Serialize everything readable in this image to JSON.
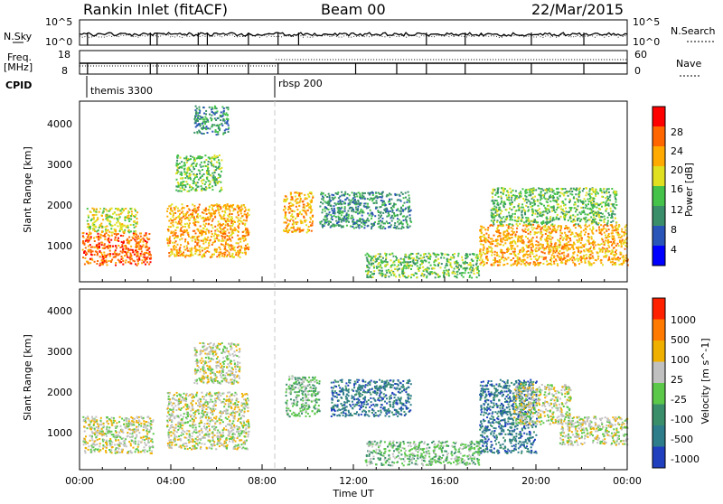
{
  "header": {
    "station": "Rankin Inlet (fitACF)",
    "beam": "Beam 00",
    "date": "22/Mar/2015"
  },
  "top_panels": {
    "nsky_label": "N.Sky",
    "nsky_ticks": [
      "10^5",
      "10^0"
    ],
    "nsearch_label": "N.Search",
    "nsearch_ticks": [
      "10^5",
      "10^0"
    ],
    "freq_label": "Freq.",
    "freq_unit": "[MHz]",
    "freq_ticks": [
      "18",
      "8"
    ],
    "nave_label": "Nave",
    "nave_ticks": [
      "60",
      "0"
    ],
    "cpid_label": "CPID",
    "cpid_segments": [
      {
        "label": "themis 3300",
        "start_hour": 0.4
      },
      {
        "label": "rbsp 200",
        "start_hour": 8.6
      }
    ]
  },
  "x_axis": {
    "label": "Time UT",
    "ticks": [
      "00:00",
      "04:00",
      "08:00",
      "12:00",
      "16:00",
      "20:00",
      "00:00"
    ]
  },
  "power_panel": {
    "ylabel": "Slant Range [km]",
    "yticks": [
      "4000",
      "3000",
      "2000",
      "1000"
    ],
    "colorbar_label": "Power [dB]",
    "colorbar_ticks": [
      "28",
      "24",
      "20",
      "16",
      "12",
      "8",
      "4"
    ],
    "colors": [
      "#0000ff",
      "#2a55b8",
      "#3a8f6a",
      "#44c24a",
      "#e0e020",
      "#ffaa00",
      "#ff6600",
      "#ff0000"
    ]
  },
  "velocity_panel": {
    "ylabel": "Slant Range [km]",
    "yticks": [
      "4000",
      "3000",
      "2000",
      "1000"
    ],
    "colorbar_label": "Velocity [m s^-1]",
    "colorbar_ticks": [
      "1000",
      "500",
      "100",
      "25",
      "-25",
      "-100",
      "-500",
      "-1000"
    ],
    "colors": [
      "#1f3fbf",
      "#2e7d8a",
      "#3a8f6a",
      "#5bc84a",
      "#c0c0c0",
      "#f0b000",
      "#ff7a00",
      "#ff2000"
    ]
  },
  "chart_data": [
    {
      "type": "heatmap",
      "title": "Power",
      "x_unit": "hours UT",
      "y_unit": "km",
      "xlim": [
        0,
        24
      ],
      "ylim": [
        180,
        4600
      ],
      "value_range": [
        0,
        32
      ],
      "regions": [
        {
          "t0": 0.1,
          "t1": 3.1,
          "r0": 600,
          "r1": 1400,
          "value": 28
        },
        {
          "t0": 0.3,
          "t1": 2.5,
          "r0": 1400,
          "r1": 2000,
          "value": 16
        },
        {
          "t0": 3.8,
          "t1": 7.4,
          "r0": 800,
          "r1": 2100,
          "value": 24
        },
        {
          "t0": 4.2,
          "t1": 6.2,
          "r0": 2400,
          "r1": 3300,
          "value": 12
        },
        {
          "t0": 5.0,
          "t1": 6.5,
          "r0": 3800,
          "r1": 4500,
          "value": 8
        },
        {
          "t0": 8.9,
          "t1": 10.2,
          "r0": 1400,
          "r1": 2400,
          "value": 22
        },
        {
          "t0": 10.5,
          "t1": 14.5,
          "r0": 1500,
          "r1": 2400,
          "value": 9
        },
        {
          "t0": 12.5,
          "t1": 17.5,
          "r0": 300,
          "r1": 900,
          "value": 14
        },
        {
          "t0": 17.5,
          "t1": 24,
          "r0": 600,
          "r1": 1600,
          "value": 22
        },
        {
          "t0": 18.0,
          "t1": 23.5,
          "r0": 1600,
          "r1": 2500,
          "value": 12
        }
      ]
    },
    {
      "type": "heatmap",
      "title": "Velocity",
      "x_unit": "hours UT",
      "y_unit": "km",
      "xlim": [
        0,
        24
      ],
      "ylim": [
        180,
        4600
      ],
      "value_range": [
        -1000,
        1000
      ],
      "regions": [
        {
          "t0": 0.1,
          "t1": 3.2,
          "r0": 600,
          "r1": 1500,
          "value": 80
        },
        {
          "t0": 3.8,
          "t1": 7.4,
          "r0": 700,
          "r1": 2100,
          "value": 120
        },
        {
          "t0": 5.0,
          "t1": 7.0,
          "r0": 2300,
          "r1": 3300,
          "value": 10
        },
        {
          "t0": 9.0,
          "t1": 10.5,
          "r0": 1500,
          "r1": 2500,
          "value": -150
        },
        {
          "t0": 11.0,
          "t1": 14.5,
          "r0": 1500,
          "r1": 2400,
          "value": -700
        },
        {
          "t0": 12.5,
          "t1": 17.5,
          "r0": 300,
          "r1": 900,
          "value": -200
        },
        {
          "t0": 17.5,
          "t1": 20.0,
          "r0": 600,
          "r1": 2400,
          "value": -600
        },
        {
          "t0": 19.0,
          "t1": 21.5,
          "r0": 1300,
          "r1": 2300,
          "value": 0
        },
        {
          "t0": 21.0,
          "t1": 24,
          "r0": 800,
          "r1": 1500,
          "value": 200
        }
      ]
    }
  ]
}
